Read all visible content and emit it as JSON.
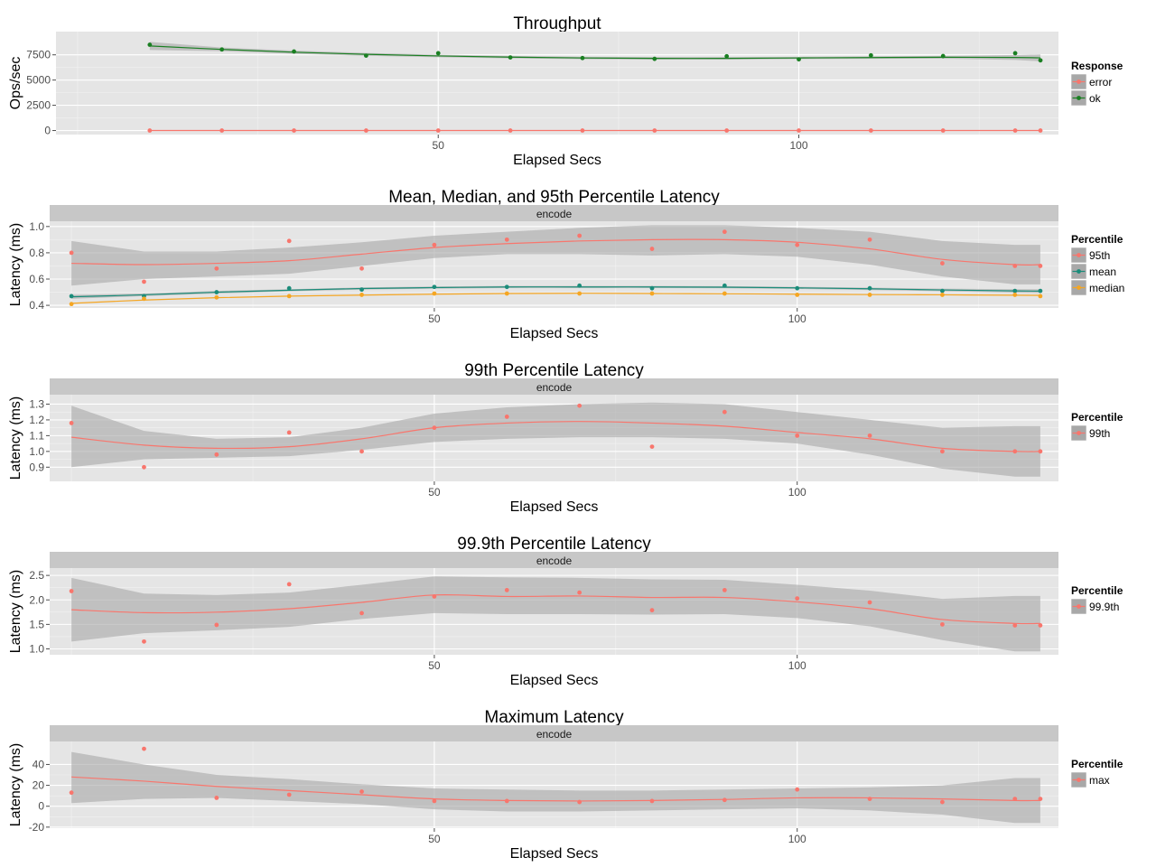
{
  "colors": {
    "panel_bg": "#e5e5e5",
    "grid_major": "#ffffff",
    "grid_minor": "#f2f2f2",
    "strip_bg": "#c7c7c7",
    "ribbon": "#a6a6a6",
    "legend_key_bg": "#a8a8a8",
    "red": "#f8766d",
    "green_dark": "#1a7f22",
    "teal": "#1b8c7a",
    "orange": "#f5a623"
  },
  "chart_data": [
    {
      "type": "scatter",
      "title": "Throughput",
      "xlabel": "Elapsed Secs",
      "ylabel": "Ops/sec",
      "xlim": [
        -3,
        136
      ],
      "ylim": [
        -400,
        9800
      ],
      "x_ticks": [
        50,
        100
      ],
      "y_ticks": [
        0,
        2500,
        5000,
        7500
      ],
      "y_tick_labels": [
        "0",
        "2500",
        "5000",
        "7500"
      ],
      "facet_strip": "",
      "legend": {
        "title": "Response",
        "position": "right"
      },
      "series": [
        {
          "name": "error",
          "color_key": "red",
          "smooth": true,
          "ribbon": false,
          "x": [
            10,
            20,
            30,
            40,
            50,
            60,
            70,
            80,
            90,
            100,
            110,
            120,
            130,
            133.5
          ],
          "y": [
            0,
            0,
            0,
            0,
            0,
            0,
            0,
            0,
            0,
            0,
            0,
            0,
            0,
            0
          ],
          "smooth_y": [
            0,
            0,
            0,
            0,
            0,
            0,
            0,
            0,
            0,
            0,
            0,
            0,
            0,
            0
          ],
          "ribbon_lo": [],
          "ribbon_hi": []
        },
        {
          "name": "ok",
          "color_key": "green_dark",
          "smooth": true,
          "ribbon": true,
          "x": [
            10,
            20,
            30,
            40,
            50,
            60,
            70,
            80,
            90,
            100,
            110,
            120,
            130,
            133.5
          ],
          "y": [
            8500,
            8030,
            7830,
            7420,
            7660,
            7240,
            7180,
            7100,
            7360,
            7050,
            7450,
            7380,
            7660,
            6950
          ],
          "smooth_y": [
            8380,
            8040,
            7760,
            7550,
            7390,
            7270,
            7190,
            7150,
            7150,
            7190,
            7230,
            7260,
            7240,
            7200
          ],
          "ribbon_lo": [
            7980,
            7860,
            7600,
            7410,
            7260,
            7150,
            7070,
            7030,
            7030,
            7080,
            7110,
            7120,
            6990,
            6860
          ],
          "ribbon_hi": [
            8780,
            8220,
            7920,
            7690,
            7520,
            7390,
            7310,
            7270,
            7270,
            7300,
            7350,
            7400,
            7490,
            7540
          ]
        }
      ]
    },
    {
      "type": "scatter",
      "title": "Mean, Median, and 95th Percentile Latency",
      "xlabel": "Elapsed Secs",
      "ylabel": "Latency (ms)",
      "xlim": [
        -3,
        136
      ],
      "ylim": [
        0.38,
        1.04
      ],
      "x_ticks": [
        50,
        100
      ],
      "y_ticks": [
        0.4,
        0.6,
        0.8,
        1.0
      ],
      "y_tick_labels": [
        "0.4",
        "0.6",
        "0.8",
        "1.0"
      ],
      "facet_strip": "encode",
      "legend": {
        "title": "Percentile",
        "position": "right"
      },
      "series": [
        {
          "name": "95th",
          "color_key": "red",
          "smooth": true,
          "ribbon": true,
          "x": [
            0,
            10,
            20,
            30,
            40,
            50,
            60,
            70,
            80,
            90,
            100,
            110,
            120,
            130,
            133.5
          ],
          "y": [
            0.8,
            0.58,
            0.68,
            0.89,
            0.68,
            0.86,
            0.9,
            0.93,
            0.83,
            0.96,
            0.86,
            0.9,
            0.72,
            0.7,
            0.7
          ],
          "smooth_y": [
            0.72,
            0.71,
            0.72,
            0.74,
            0.79,
            0.84,
            0.87,
            0.89,
            0.9,
            0.9,
            0.88,
            0.83,
            0.75,
            0.71,
            0.71
          ],
          "ribbon_lo": [
            0.55,
            0.6,
            0.62,
            0.64,
            0.7,
            0.76,
            0.79,
            0.79,
            0.78,
            0.79,
            0.77,
            0.71,
            0.62,
            0.56,
            0.56
          ],
          "ribbon_hi": [
            0.89,
            0.81,
            0.81,
            0.84,
            0.88,
            0.93,
            0.96,
            0.99,
            1.01,
            1.01,
            0.99,
            0.96,
            0.89,
            0.86,
            0.86
          ]
        },
        {
          "name": "mean",
          "color_key": "teal",
          "smooth": true,
          "ribbon": true,
          "x": [
            0,
            10,
            20,
            30,
            40,
            50,
            60,
            70,
            80,
            90,
            100,
            110,
            120,
            130,
            133.5
          ],
          "y": [
            0.47,
            0.47,
            0.5,
            0.53,
            0.52,
            0.54,
            0.54,
            0.55,
            0.53,
            0.55,
            0.53,
            0.53,
            0.51,
            0.51,
            0.51
          ],
          "smooth_y": [
            0.465,
            0.48,
            0.5,
            0.515,
            0.528,
            0.535,
            0.54,
            0.54,
            0.54,
            0.538,
            0.533,
            0.526,
            0.517,
            0.51,
            0.508
          ],
          "ribbon_lo": [
            0.45,
            0.47,
            0.49,
            0.507,
            0.52,
            0.527,
            0.532,
            0.532,
            0.532,
            0.53,
            0.525,
            0.517,
            0.507,
            0.497,
            0.494
          ],
          "ribbon_hi": [
            0.48,
            0.49,
            0.51,
            0.523,
            0.536,
            0.543,
            0.548,
            0.548,
            0.548,
            0.546,
            0.541,
            0.535,
            0.527,
            0.523,
            0.522
          ]
        },
        {
          "name": "median",
          "color_key": "orange",
          "smooth": true,
          "ribbon": false,
          "x": [
            0,
            10,
            20,
            30,
            40,
            50,
            60,
            70,
            80,
            90,
            100,
            110,
            120,
            130,
            133.5
          ],
          "y": [
            0.41,
            0.45,
            0.46,
            0.47,
            0.48,
            0.49,
            0.49,
            0.49,
            0.49,
            0.49,
            0.48,
            0.48,
            0.48,
            0.48,
            0.47
          ],
          "smooth_y": [
            0.415,
            0.44,
            0.458,
            0.47,
            0.478,
            0.485,
            0.49,
            0.492,
            0.49,
            0.488,
            0.485,
            0.482,
            0.48,
            0.477,
            0.476
          ],
          "ribbon_lo": [],
          "ribbon_hi": []
        }
      ]
    },
    {
      "type": "scatter",
      "title": "99th Percentile Latency",
      "xlabel": "Elapsed Secs",
      "ylabel": "Latency (ms)",
      "xlim": [
        -3,
        136
      ],
      "ylim": [
        0.81,
        1.36
      ],
      "x_ticks": [
        50,
        100
      ],
      "y_ticks": [
        0.9,
        1.0,
        1.1,
        1.2,
        1.3
      ],
      "y_tick_labels": [
        "0.9",
        "1.0",
        "1.1",
        "1.2",
        "1.3"
      ],
      "facet_strip": "encode",
      "legend": {
        "title": "Percentile",
        "position": "right"
      },
      "series": [
        {
          "name": "99th",
          "color_key": "red",
          "smooth": true,
          "ribbon": true,
          "x": [
            0,
            10,
            20,
            30,
            40,
            50,
            60,
            70,
            80,
            90,
            100,
            110,
            120,
            130,
            133.5
          ],
          "y": [
            1.18,
            0.9,
            0.98,
            1.12,
            1.0,
            1.15,
            1.22,
            1.29,
            1.03,
            1.25,
            1.1,
            1.1,
            1.0,
            1.0,
            1.0
          ],
          "smooth_y": [
            1.09,
            1.04,
            1.02,
            1.03,
            1.08,
            1.15,
            1.18,
            1.19,
            1.18,
            1.16,
            1.12,
            1.08,
            1.02,
            1.0,
            1.0
          ],
          "ribbon_lo": [
            0.9,
            0.95,
            0.96,
            0.97,
            1.01,
            1.06,
            1.08,
            1.09,
            1.09,
            1.08,
            1.05,
            0.98,
            0.89,
            0.84,
            0.84
          ],
          "ribbon_hi": [
            1.29,
            1.13,
            1.08,
            1.09,
            1.15,
            1.24,
            1.28,
            1.3,
            1.31,
            1.3,
            1.25,
            1.2,
            1.15,
            1.16,
            1.16
          ]
        }
      ]
    },
    {
      "type": "scatter",
      "title": "99.9th Percentile Latency",
      "xlabel": "Elapsed Secs",
      "ylabel": "Latency (ms)",
      "xlim": [
        -3,
        136
      ],
      "ylim": [
        0.88,
        2.65
      ],
      "x_ticks": [
        50,
        100
      ],
      "y_ticks": [
        1.0,
        1.5,
        2.0,
        2.5
      ],
      "y_tick_labels": [
        "1.0",
        "1.5",
        "2.0",
        "2.5"
      ],
      "facet_strip": "encode",
      "legend": {
        "title": "Percentile",
        "position": "right"
      },
      "series": [
        {
          "name": "99.9th",
          "color_key": "red",
          "smooth": true,
          "ribbon": true,
          "x": [
            0,
            10,
            20,
            30,
            40,
            50,
            60,
            70,
            80,
            90,
            100,
            110,
            120,
            130,
            133.5
          ],
          "y": [
            2.18,
            1.15,
            1.49,
            2.32,
            1.73,
            2.07,
            2.2,
            2.15,
            1.79,
            2.2,
            2.03,
            1.95,
            1.5,
            1.48,
            1.48
          ],
          "smooth_y": [
            1.8,
            1.74,
            1.75,
            1.82,
            1.95,
            2.1,
            2.07,
            2.08,
            2.05,
            2.05,
            1.96,
            1.82,
            1.6,
            1.52,
            1.52
          ],
          "ribbon_lo": [
            1.15,
            1.32,
            1.38,
            1.45,
            1.61,
            1.73,
            1.71,
            1.71,
            1.7,
            1.71,
            1.63,
            1.46,
            1.18,
            0.95,
            0.95
          ],
          "ribbon_hi": [
            2.45,
            2.13,
            2.1,
            2.15,
            2.31,
            2.48,
            2.46,
            2.45,
            2.42,
            2.41,
            2.31,
            2.19,
            2.02,
            2.08,
            2.08
          ]
        }
      ]
    },
    {
      "type": "scatter",
      "title": "Maximum Latency",
      "xlabel": "Elapsed Secs",
      "ylabel": "Latency (ms)",
      "xlim": [
        -3,
        136
      ],
      "ylim": [
        -21,
        62
      ],
      "x_ticks": [
        50,
        100
      ],
      "y_ticks": [
        -20,
        0,
        20,
        40
      ],
      "y_tick_labels": [
        "-20",
        "0",
        "20",
        "40"
      ],
      "facet_strip": "encode",
      "legend": {
        "title": "Percentile",
        "position": "right"
      },
      "series": [
        {
          "name": "max",
          "color_key": "red",
          "smooth": true,
          "ribbon": true,
          "x": [
            0,
            10,
            20,
            30,
            40,
            50,
            60,
            70,
            80,
            90,
            100,
            110,
            120,
            130,
            133.5
          ],
          "y": [
            13,
            55,
            8,
            11,
            14,
            5,
            5,
            4,
            5,
            6,
            16,
            7,
            4,
            7,
            7
          ],
          "smooth_y": [
            28,
            24,
            19,
            15,
            11,
            7,
            5.5,
            5,
            5.5,
            6.5,
            8,
            8,
            7,
            5.5,
            5.5
          ],
          "ribbon_lo": [
            3,
            7,
            8,
            5,
            2,
            -3,
            -5,
            -5,
            -4,
            -3,
            -2,
            -4,
            -8,
            -16,
            -16
          ],
          "ribbon_hi": [
            52,
            40,
            30,
            26,
            21,
            17,
            16,
            15,
            15,
            16,
            17,
            18,
            20,
            27,
            27
          ]
        }
      ]
    }
  ]
}
